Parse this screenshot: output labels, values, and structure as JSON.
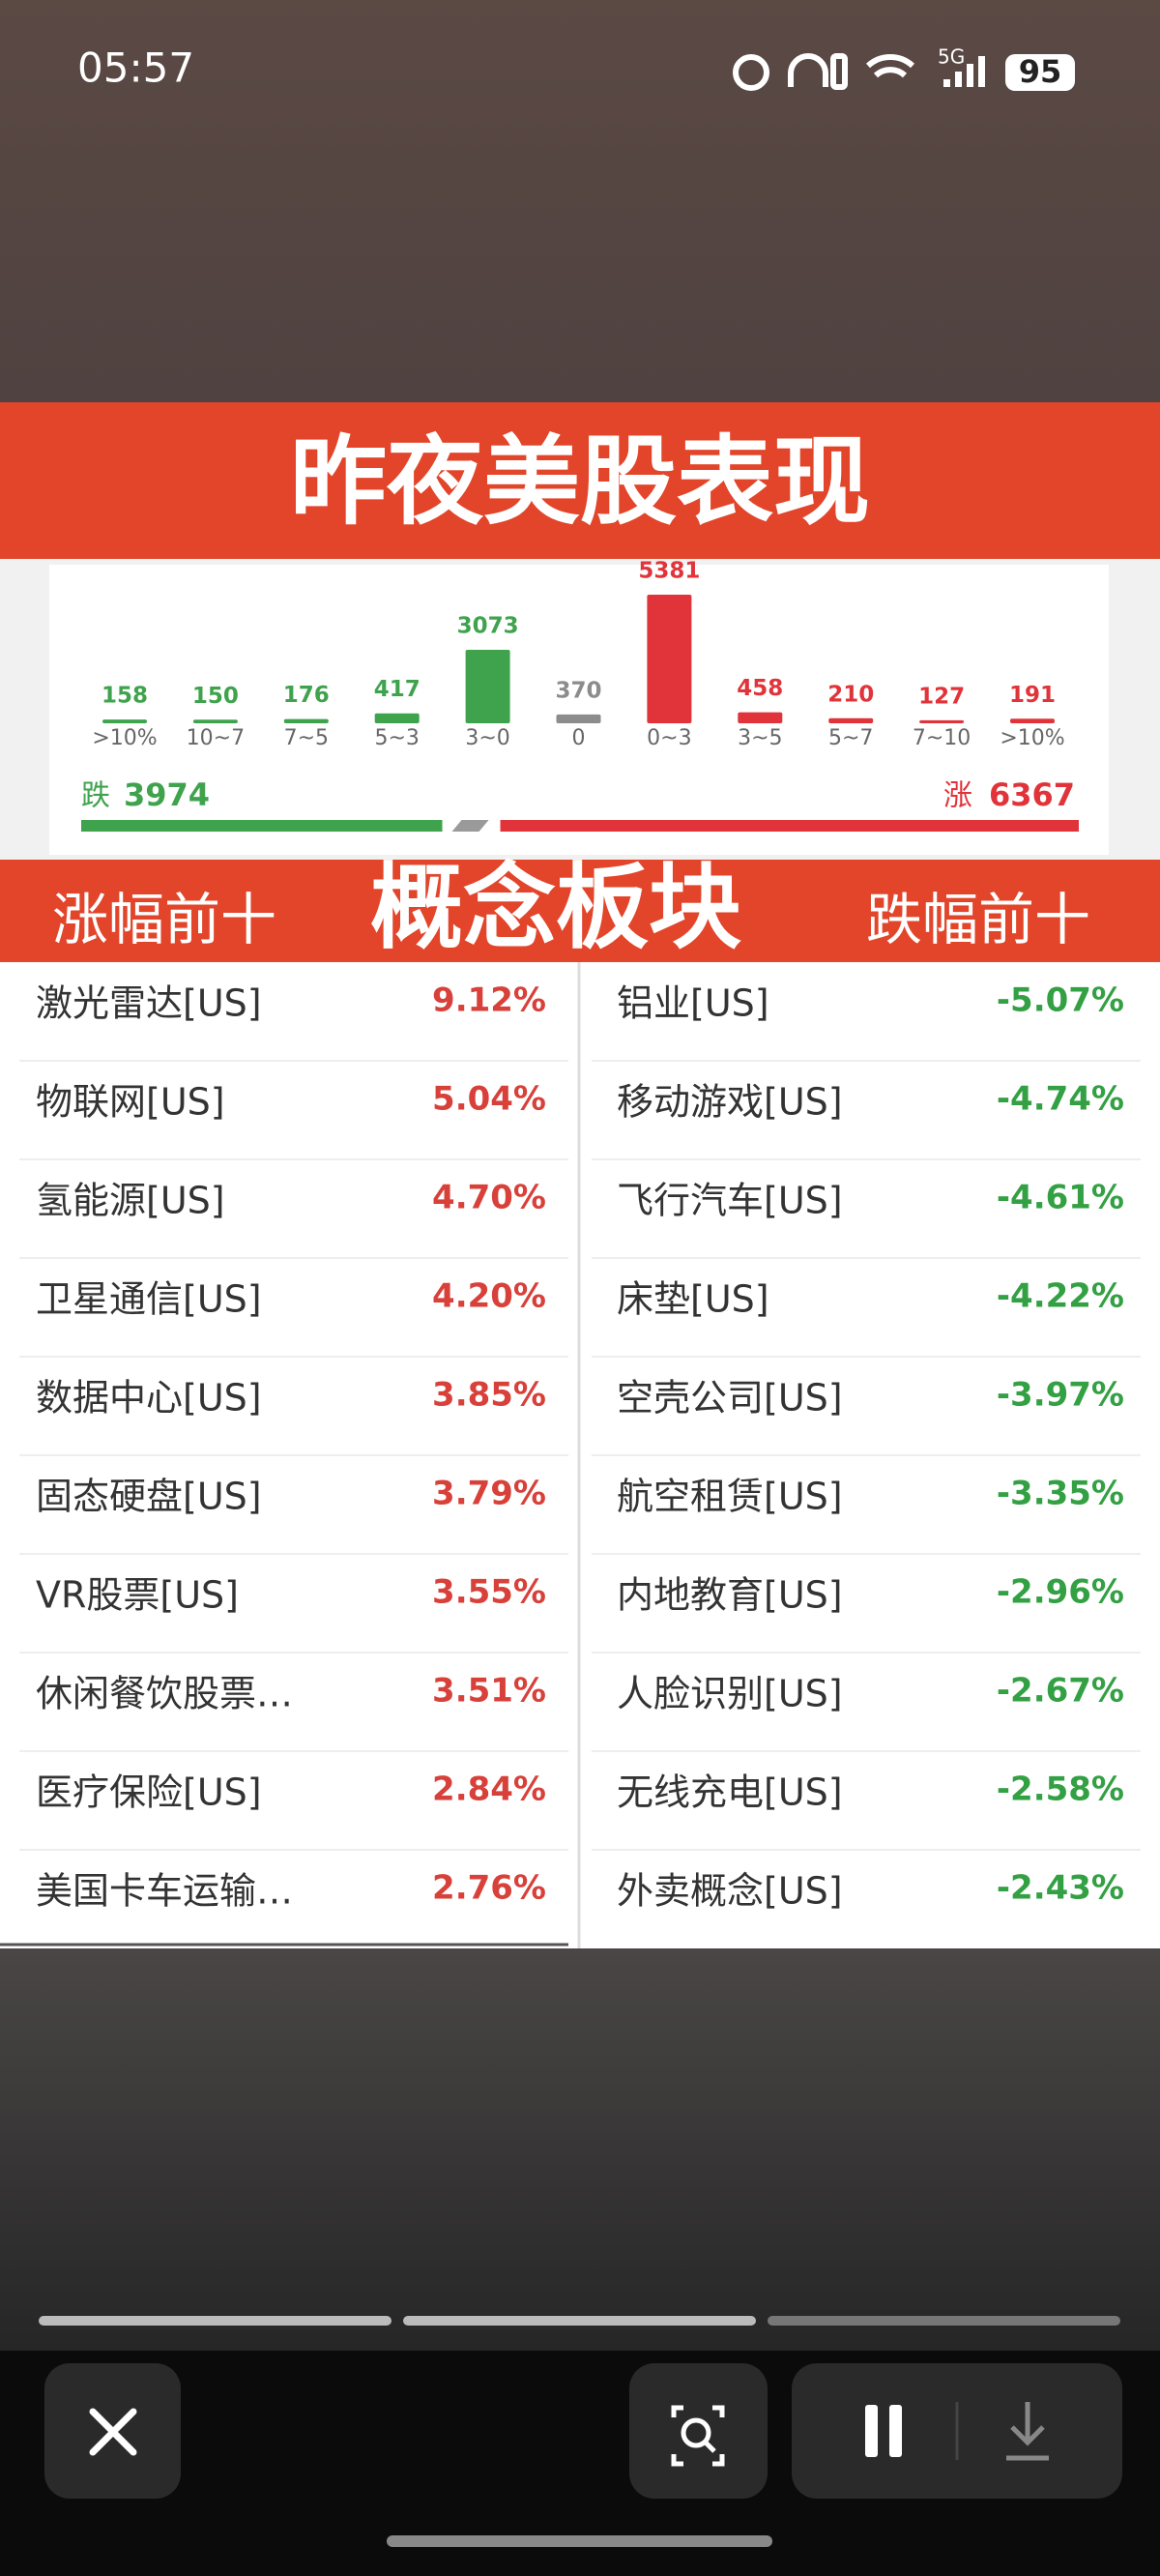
{
  "status_bar": {
    "time": "05:57",
    "network": "5G",
    "battery": "95"
  },
  "header": {
    "title": "昨夜美股表现"
  },
  "chart_data": {
    "type": "bar",
    "categories": [
      ">10%",
      "10~7",
      "7~5",
      "5~3",
      "3~0",
      "0",
      "0~3",
      "3~5",
      "5~7",
      "7~10",
      ">10%"
    ],
    "values": [
      158,
      150,
      176,
      417,
      3073,
      370,
      5381,
      458,
      210,
      127,
      191
    ],
    "colors": [
      "#3fa34d",
      "#3fa34d",
      "#3fa34d",
      "#3fa34d",
      "#3fa34d",
      "#8c8c8c",
      "#e0343a",
      "#e0343a",
      "#e0343a",
      "#e0343a",
      "#e0343a"
    ]
  },
  "summary": {
    "fall_label": "跌",
    "fall_count": 3974,
    "rise_label": "涨",
    "rise_count": 6367
  },
  "section": {
    "left_title": "涨幅前十",
    "title": "概念板块",
    "right_title": "跌幅前十"
  },
  "gainers": [
    {
      "name": "激光雷达[US]",
      "change": "9.12%"
    },
    {
      "name": "物联网[US]",
      "change": "5.04%"
    },
    {
      "name": "氢能源[US]",
      "change": "4.70%"
    },
    {
      "name": "卫星通信[US]",
      "change": "4.20%"
    },
    {
      "name": "数据中心[US]",
      "change": "3.85%"
    },
    {
      "name": "固态硬盘[US]",
      "change": "3.79%"
    },
    {
      "name": "VR股票[US]",
      "change": "3.55%"
    },
    {
      "name": "休闲餐饮股票…",
      "change": "3.51%"
    },
    {
      "name": "医疗保险[US]",
      "change": "2.84%"
    },
    {
      "name": "美国卡车运输…",
      "change": "2.76%"
    }
  ],
  "losers": [
    {
      "name": "铝业[US]",
      "change": "-5.07%"
    },
    {
      "name": "移动游戏[US]",
      "change": "-4.74%"
    },
    {
      "name": "飞行汽车[US]",
      "change": "-4.61%"
    },
    {
      "name": "床垫[US]",
      "change": "-4.22%"
    },
    {
      "name": "空壳公司[US]",
      "change": "-3.97%"
    },
    {
      "name": "航空租赁[US]",
      "change": "-3.35%"
    },
    {
      "name": "内地教育[US]",
      "change": "-2.96%"
    },
    {
      "name": "人脸识别[US]",
      "change": "-2.67%"
    },
    {
      "name": "无线充电[US]",
      "change": "-2.58%"
    },
    {
      "name": "外卖概念[US]",
      "change": "-2.43%"
    }
  ]
}
